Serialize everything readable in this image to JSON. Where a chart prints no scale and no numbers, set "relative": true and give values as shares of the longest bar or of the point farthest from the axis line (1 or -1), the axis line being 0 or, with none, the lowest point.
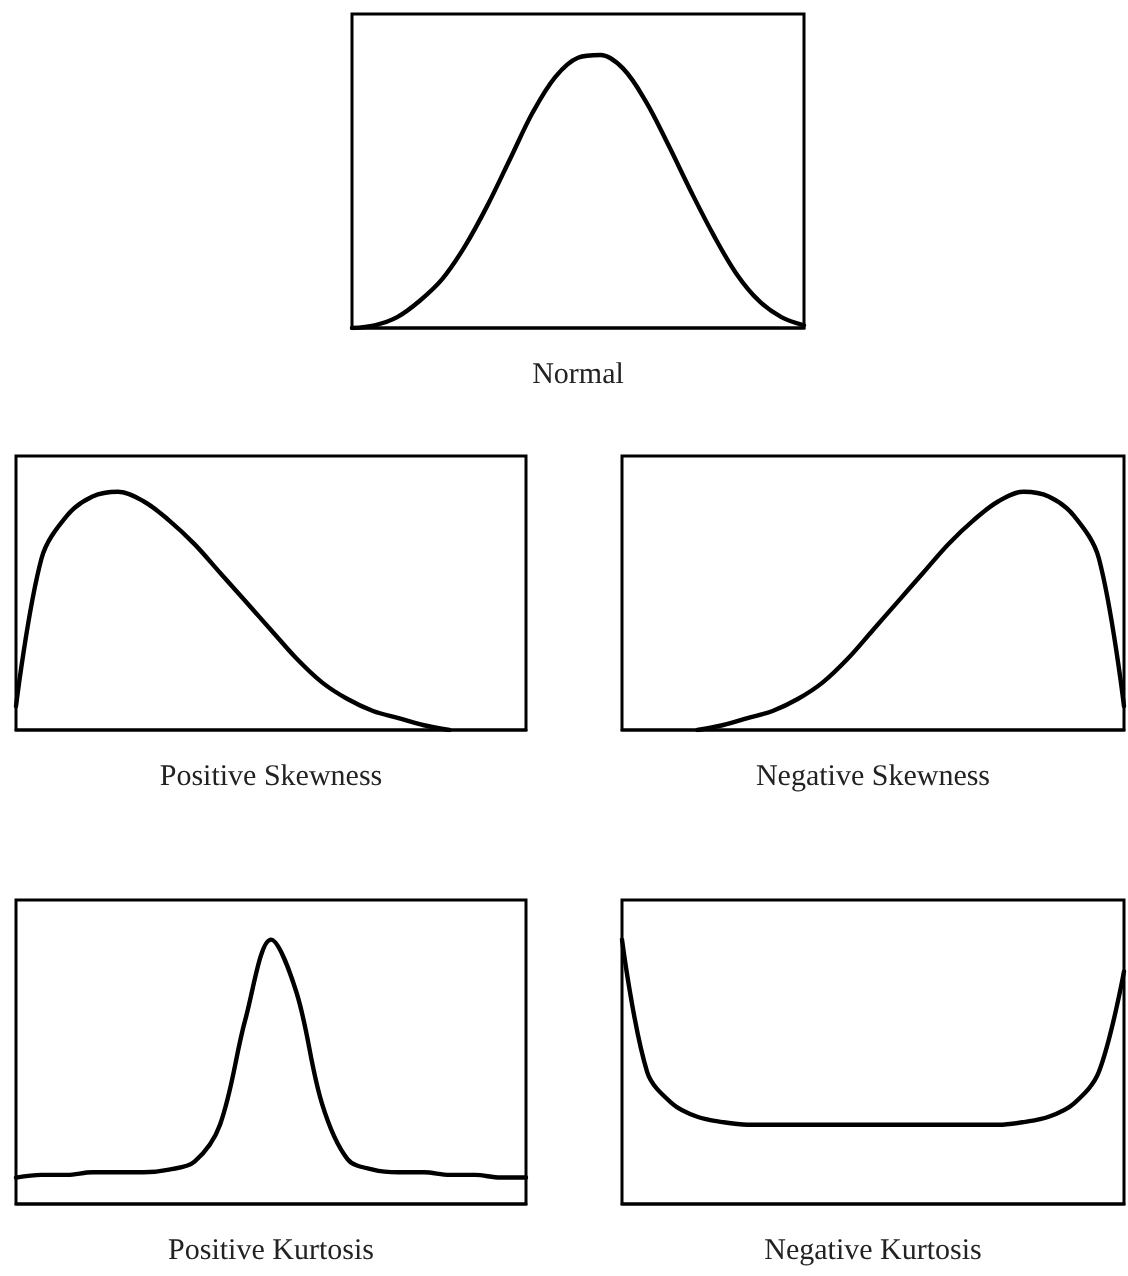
{
  "chart_data": [
    {
      "type": "line",
      "xlabel": "Normal",
      "relative": true,
      "marker": "none",
      "color": "#000000",
      "categories": [
        null,
        null,
        null,
        null,
        null,
        null,
        null,
        null,
        null,
        null,
        null,
        null,
        null,
        null,
        null,
        null,
        null,
        null,
        null,
        null,
        null
      ],
      "values": [
        0,
        0.01,
        0.04,
        0.1,
        0.18,
        0.3,
        0.45,
        0.62,
        0.79,
        0.92,
        0.99,
        1,
        0.95,
        0.83,
        0.67,
        0.5,
        0.34,
        0.2,
        0.1,
        0.04,
        0.01
      ]
    },
    {
      "type": "line",
      "xlabel": "Positive Skewness",
      "relative": true,
      "marker": "none",
      "color": "#000000",
      "categories": [
        null,
        null,
        null,
        null,
        null,
        null,
        null,
        null,
        null,
        null,
        null,
        null,
        null,
        null,
        null,
        null,
        null,
        null,
        null,
        null,
        null
      ],
      "values": [
        0.1,
        0.72,
        0.9,
        0.98,
        1,
        0.96,
        0.88,
        0.78,
        0.66,
        0.54,
        0.42,
        0.3,
        0.2,
        0.13,
        0.08,
        0.05,
        0.02,
        0,
        null,
        null,
        null
      ]
    },
    {
      "type": "line",
      "xlabel": "Negative Skewness",
      "relative": true,
      "marker": "none",
      "color": "#000000",
      "categories": [
        null,
        null,
        null,
        null,
        null,
        null,
        null,
        null,
        null,
        null,
        null,
        null,
        null,
        null,
        null,
        null,
        null,
        null,
        null,
        null,
        null
      ],
      "values": [
        null,
        null,
        null,
        0,
        0.02,
        0.05,
        0.08,
        0.13,
        0.2,
        0.3,
        0.42,
        0.54,
        0.66,
        0.78,
        0.88,
        0.96,
        1,
        0.98,
        0.9,
        0.72,
        0.1
      ]
    },
    {
      "type": "line",
      "xlabel": "Positive Kurtosis",
      "relative": true,
      "marker": "none",
      "color": "#000000",
      "categories": [
        null,
        null,
        null,
        null,
        null,
        null,
        null,
        null,
        null,
        null,
        null,
        null,
        null,
        null,
        null,
        null,
        null,
        null,
        null,
        null,
        null
      ],
      "values": [
        0.1,
        0.11,
        0.11,
        0.12,
        0.12,
        0.12,
        0.13,
        0.16,
        0.3,
        0.7,
        1,
        0.8,
        0.38,
        0.17,
        0.13,
        0.12,
        0.12,
        0.11,
        0.11,
        0.1,
        0.1
      ]
    },
    {
      "type": "line",
      "xlabel": "Negative Kurtosis",
      "relative": true,
      "marker": "none",
      "color": "#000000",
      "categories": [
        null,
        null,
        null,
        null,
        null,
        null,
        null,
        null,
        null,
        null,
        null,
        null,
        null,
        null,
        null,
        null,
        null,
        null,
        null,
        null,
        null
      ],
      "values": [
        1,
        0.5,
        0.38,
        0.33,
        0.31,
        0.3,
        0.3,
        0.3,
        0.3,
        0.3,
        0.3,
        0.3,
        0.3,
        0.3,
        0.3,
        0.3,
        0.31,
        0.33,
        0.38,
        0.5,
        0.88
      ]
    }
  ]
}
